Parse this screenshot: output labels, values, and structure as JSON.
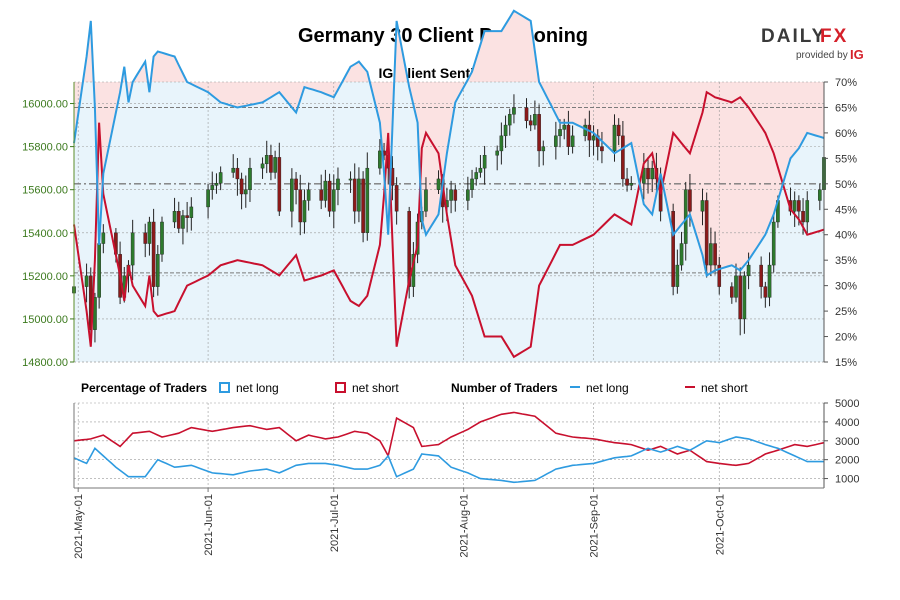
{
  "chart_data": {
    "type": "candlestick+line",
    "title": "Germany 30 Client Positioning",
    "subtitle": "IG Client Sentiment",
    "brand": {
      "name_left": "DAILY",
      "name_right": "FX",
      "provided_by": "provided by",
      "ig_mark": "IG"
    },
    "colors": {
      "net_long": "#2e9be0",
      "net_short": "#c8102e",
      "candle_up": "#2d7a2d",
      "candle_down": "#8b1a1a",
      "long_fill": "#e8f4fb",
      "short_fill": "#fbe2e2",
      "price_axis": "#3c7a1e"
    },
    "price_axis": {
      "min": 14800,
      "max": 16100,
      "ticks": [
        14800,
        15000,
        15200,
        15400,
        15600,
        15800,
        16000
      ],
      "tick_labels": [
        "14800.00",
        "15000.00",
        "15200.00",
        "15400.00",
        "15600.00",
        "15800.00",
        "16000.00"
      ]
    },
    "pct_axis": {
      "min": 15,
      "max": 70,
      "ticks": [
        15,
        20,
        25,
        30,
        35,
        40,
        45,
        50,
        55,
        60,
        65,
        70
      ],
      "tick_labels": [
        "15%",
        "20%",
        "25%",
        "30%",
        "35%",
        "40%",
        "45%",
        "50%",
        "55%",
        "60%",
        "65%",
        "70%"
      ]
    },
    "reference_lines_pct": [
      50,
      65,
      32.5
    ],
    "count_axis": {
      "min": 500,
      "max": 5000,
      "ticks": [
        1000,
        2000,
        3000,
        4000,
        5000
      ],
      "tick_labels": [
        "1000",
        "2000",
        "3000",
        "4000",
        "5000"
      ]
    },
    "date_range": {
      "start": "2021-04-30",
      "end": "2021-10-26"
    },
    "x_ticks": [
      {
        "date": "2021-05-01",
        "label": "2021-May-01"
      },
      {
        "date": "2021-06-01",
        "label": "2021-Jun-01"
      },
      {
        "date": "2021-07-01",
        "label": "2021-Jul-01"
      },
      {
        "date": "2021-08-01",
        "label": "2021-Aug-01"
      },
      {
        "date": "2021-09-01",
        "label": "2021-Sep-01"
      },
      {
        "date": "2021-10-01",
        "label": "2021-Oct-01"
      }
    ],
    "legend": {
      "pct_title": "Percentage of Traders",
      "pct_long": "net long",
      "pct_short": "net short",
      "count_title": "Number of Traders",
      "count_long": "net long",
      "count_short": "net short"
    },
    "net_long_pct_keyframes": [
      [
        "2021-04-30",
        58
      ],
      [
        "2021-05-03",
        75
      ],
      [
        "2021-05-04",
        82
      ],
      [
        "2021-05-05",
        65
      ],
      [
        "2021-05-06",
        38
      ],
      [
        "2021-05-07",
        52
      ],
      [
        "2021-05-10",
        64
      ],
      [
        "2021-05-11",
        68
      ],
      [
        "2021-05-12",
        73
      ],
      [
        "2021-05-13",
        66
      ],
      [
        "2021-05-14",
        70
      ],
      [
        "2021-05-17",
        74
      ],
      [
        "2021-05-18",
        68
      ],
      [
        "2021-05-19",
        75
      ],
      [
        "2021-05-20",
        76
      ],
      [
        "2021-05-24",
        75
      ],
      [
        "2021-05-27",
        70
      ],
      [
        "2021-06-01",
        68
      ],
      [
        "2021-06-04",
        66
      ],
      [
        "2021-06-08",
        65
      ],
      [
        "2021-06-14",
        66
      ],
      [
        "2021-06-18",
        68
      ],
      [
        "2021-06-22",
        64
      ],
      [
        "2021-06-24",
        69
      ],
      [
        "2021-06-28",
        68
      ],
      [
        "2021-07-01",
        67
      ],
      [
        "2021-07-05",
        73
      ],
      [
        "2021-07-07",
        74
      ],
      [
        "2021-07-09",
        72
      ],
      [
        "2021-07-12",
        62
      ],
      [
        "2021-07-13",
        52
      ],
      [
        "2021-07-14",
        40
      ],
      [
        "2021-07-16",
        82
      ],
      [
        "2021-07-19",
        69
      ],
      [
        "2021-07-21",
        62
      ],
      [
        "2021-07-22",
        43
      ],
      [
        "2021-07-23",
        40
      ],
      [
        "2021-07-26",
        44
      ],
      [
        "2021-07-28",
        56
      ],
      [
        "2021-07-30",
        66
      ],
      [
        "2021-08-03",
        72
      ],
      [
        "2021-08-06",
        80
      ],
      [
        "2021-08-10",
        80
      ],
      [
        "2021-08-13",
        84
      ],
      [
        "2021-08-17",
        82
      ],
      [
        "2021-08-19",
        70
      ],
      [
        "2021-08-24",
        62
      ],
      [
        "2021-08-27",
        62
      ],
      [
        "2021-09-01",
        60
      ],
      [
        "2021-09-06",
        56
      ],
      [
        "2021-09-10",
        58
      ],
      [
        "2021-09-13",
        46
      ],
      [
        "2021-09-15",
        44
      ],
      [
        "2021-09-17",
        52
      ],
      [
        "2021-09-20",
        40
      ],
      [
        "2021-09-22",
        42
      ],
      [
        "2021-09-24",
        44
      ],
      [
        "2021-09-27",
        36
      ],
      [
        "2021-09-28",
        32
      ],
      [
        "2021-09-30",
        33
      ],
      [
        "2021-10-04",
        34
      ],
      [
        "2021-10-06",
        33
      ],
      [
        "2021-10-08",
        35
      ],
      [
        "2021-10-12",
        40
      ],
      [
        "2021-10-14",
        44
      ],
      [
        "2021-10-18",
        55
      ],
      [
        "2021-10-20",
        57
      ],
      [
        "2021-10-22",
        60
      ],
      [
        "2021-10-26",
        59
      ]
    ],
    "net_long_count_keyframes": [
      [
        "2021-04-30",
        2100
      ],
      [
        "2021-05-03",
        1800
      ],
      [
        "2021-05-05",
        2600
      ],
      [
        "2021-05-07",
        2200
      ],
      [
        "2021-05-10",
        1600
      ],
      [
        "2021-05-13",
        1100
      ],
      [
        "2021-05-17",
        1100
      ],
      [
        "2021-05-20",
        2000
      ],
      [
        "2021-05-24",
        1600
      ],
      [
        "2021-05-28",
        1700
      ],
      [
        "2021-06-02",
        1300
      ],
      [
        "2021-06-07",
        1200
      ],
      [
        "2021-06-11",
        1400
      ],
      [
        "2021-06-15",
        1500
      ],
      [
        "2021-06-18",
        1300
      ],
      [
        "2021-06-22",
        1700
      ],
      [
        "2021-06-25",
        1800
      ],
      [
        "2021-06-29",
        1800
      ],
      [
        "2021-07-02",
        1700
      ],
      [
        "2021-07-06",
        1500
      ],
      [
        "2021-07-09",
        1500
      ],
      [
        "2021-07-12",
        1700
      ],
      [
        "2021-07-14",
        2200
      ],
      [
        "2021-07-16",
        1100
      ],
      [
        "2021-07-20",
        1500
      ],
      [
        "2021-07-22",
        2300
      ],
      [
        "2021-07-26",
        2200
      ],
      [
        "2021-07-29",
        1600
      ],
      [
        "2021-08-02",
        1300
      ],
      [
        "2021-08-05",
        1000
      ],
      [
        "2021-08-10",
        900
      ],
      [
        "2021-08-13",
        800
      ],
      [
        "2021-08-18",
        900
      ],
      [
        "2021-08-23",
        1500
      ],
      [
        "2021-08-27",
        1700
      ],
      [
        "2021-09-01",
        1800
      ],
      [
        "2021-09-06",
        2100
      ],
      [
        "2021-09-10",
        2200
      ],
      [
        "2021-09-14",
        2600
      ],
      [
        "2021-09-17",
        2400
      ],
      [
        "2021-09-21",
        2700
      ],
      [
        "2021-09-24",
        2500
      ],
      [
        "2021-09-28",
        3000
      ],
      [
        "2021-10-01",
        2900
      ],
      [
        "2021-10-05",
        3200
      ],
      [
        "2021-10-08",
        3100
      ],
      [
        "2021-10-12",
        2800
      ],
      [
        "2021-10-15",
        2600
      ],
      [
        "2021-10-19",
        2200
      ],
      [
        "2021-10-22",
        1900
      ],
      [
        "2021-10-26",
        1900
      ]
    ],
    "net_short_count_keyframes": [
      [
        "2021-04-30",
        3000
      ],
      [
        "2021-05-04",
        3100
      ],
      [
        "2021-05-07",
        3300
      ],
      [
        "2021-05-11",
        2700
      ],
      [
        "2021-05-14",
        3400
      ],
      [
        "2021-05-18",
        3500
      ],
      [
        "2021-05-21",
        3200
      ],
      [
        "2021-05-25",
        3400
      ],
      [
        "2021-05-28",
        3700
      ],
      [
        "2021-06-02",
        3500
      ],
      [
        "2021-06-07",
        3700
      ],
      [
        "2021-06-11",
        3800
      ],
      [
        "2021-06-15",
        3600
      ],
      [
        "2021-06-18",
        3700
      ],
      [
        "2021-06-22",
        3000
      ],
      [
        "2021-06-25",
        3300
      ],
      [
        "2021-06-29",
        3100
      ],
      [
        "2021-07-02",
        3200
      ],
      [
        "2021-07-06",
        3500
      ],
      [
        "2021-07-09",
        3400
      ],
      [
        "2021-07-12",
        3000
      ],
      [
        "2021-07-14",
        2200
      ],
      [
        "2021-07-16",
        4200
      ],
      [
        "2021-07-20",
        3700
      ],
      [
        "2021-07-22",
        2700
      ],
      [
        "2021-07-26",
        2800
      ],
      [
        "2021-07-29",
        3200
      ],
      [
        "2021-08-02",
        3600
      ],
      [
        "2021-08-05",
        4000
      ],
      [
        "2021-08-10",
        4400
      ],
      [
        "2021-08-13",
        4500
      ],
      [
        "2021-08-18",
        4300
      ],
      [
        "2021-08-23",
        3400
      ],
      [
        "2021-08-27",
        3200
      ],
      [
        "2021-09-01",
        3100
      ],
      [
        "2021-09-06",
        2900
      ],
      [
        "2021-09-10",
        2800
      ],
      [
        "2021-09-14",
        2500
      ],
      [
        "2021-09-17",
        2700
      ],
      [
        "2021-09-21",
        2300
      ],
      [
        "2021-09-24",
        2500
      ],
      [
        "2021-09-28",
        1900
      ],
      [
        "2021-10-01",
        1800
      ],
      [
        "2021-10-05",
        1700
      ],
      [
        "2021-10-08",
        1800
      ],
      [
        "2021-10-12",
        2300
      ],
      [
        "2021-10-15",
        2500
      ],
      [
        "2021-10-19",
        2800
      ],
      [
        "2021-10-22",
        2700
      ],
      [
        "2021-10-26",
        2900
      ]
    ],
    "price_keyframes": [
      [
        "2021-04-30",
        15150
      ],
      [
        "2021-05-03",
        15200
      ],
      [
        "2021-05-04",
        14950
      ],
      [
        "2021-05-05",
        15100
      ],
      [
        "2021-05-06",
        15350
      ],
      [
        "2021-05-07",
        15400
      ],
      [
        "2021-05-10",
        15300
      ],
      [
        "2021-05-11",
        15100
      ],
      [
        "2021-05-12",
        15200
      ],
      [
        "2021-05-13",
        15250
      ],
      [
        "2021-05-14",
        15400
      ],
      [
        "2021-05-17",
        15350
      ],
      [
        "2021-05-18",
        15450
      ],
      [
        "2021-05-19",
        15150
      ],
      [
        "2021-05-20",
        15300
      ],
      [
        "2021-05-21",
        15450
      ],
      [
        "2021-05-24",
        15500
      ],
      [
        "2021-05-25",
        15420
      ],
      [
        "2021-05-26",
        15480
      ],
      [
        "2021-05-27",
        15470
      ],
      [
        "2021-05-28",
        15520
      ],
      [
        "2021-06-01",
        15600
      ],
      [
        "2021-06-02",
        15620
      ],
      [
        "2021-06-03",
        15630
      ],
      [
        "2021-06-04",
        15680
      ],
      [
        "2021-06-07",
        15700
      ],
      [
        "2021-06-08",
        15650
      ],
      [
        "2021-06-09",
        15580
      ],
      [
        "2021-06-10",
        15600
      ],
      [
        "2021-06-11",
        15700
      ],
      [
        "2021-06-14",
        15720
      ],
      [
        "2021-06-15",
        15760
      ],
      [
        "2021-06-16",
        15680
      ],
      [
        "2021-06-17",
        15750
      ],
      [
        "2021-06-18",
        15500
      ],
      [
        "2021-06-21",
        15650
      ],
      [
        "2021-06-22",
        15600
      ],
      [
        "2021-06-23",
        15450
      ],
      [
        "2021-06-24",
        15550
      ],
      [
        "2021-06-25",
        15600
      ],
      [
        "2021-06-28",
        15550
      ],
      [
        "2021-06-29",
        15640
      ],
      [
        "2021-06-30",
        15500
      ],
      [
        "2021-07-01",
        15600
      ],
      [
        "2021-07-02",
        15650
      ],
      [
        "2021-07-05",
        15650
      ],
      [
        "2021-07-06",
        15500
      ],
      [
        "2021-07-07",
        15650
      ],
      [
        "2021-07-08",
        15400
      ],
      [
        "2021-07-09",
        15700
      ],
      [
        "2021-07-12",
        15780
      ],
      [
        "2021-07-13",
        15760
      ],
      [
        "2021-07-14",
        15700
      ],
      [
        "2021-07-15",
        15620
      ],
      [
        "2021-07-16",
        15500
      ],
      [
        "2021-07-19",
        15150
      ],
      [
        "2021-07-20",
        15300
      ],
      [
        "2021-07-21",
        15450
      ],
      [
        "2021-07-22",
        15500
      ],
      [
        "2021-07-23",
        15600
      ],
      [
        "2021-07-26",
        15650
      ],
      [
        "2021-07-27",
        15520
      ],
      [
        "2021-07-28",
        15550
      ],
      [
        "2021-07-29",
        15600
      ],
      [
        "2021-07-30",
        15550
      ],
      [
        "2021-08-02",
        15600
      ],
      [
        "2021-08-03",
        15650
      ],
      [
        "2021-08-04",
        15680
      ],
      [
        "2021-08-05",
        15700
      ],
      [
        "2021-08-06",
        15760
      ],
      [
        "2021-08-09",
        15780
      ],
      [
        "2021-08-10",
        15850
      ],
      [
        "2021-08-11",
        15900
      ],
      [
        "2021-08-12",
        15950
      ],
      [
        "2021-08-13",
        15980
      ],
      [
        "2021-08-16",
        15920
      ],
      [
        "2021-08-17",
        15900
      ],
      [
        "2021-08-18",
        15950
      ],
      [
        "2021-08-19",
        15780
      ],
      [
        "2021-08-20",
        15800
      ],
      [
        "2021-08-23",
        15850
      ],
      [
        "2021-08-24",
        15880
      ],
      [
        "2021-08-25",
        15900
      ],
      [
        "2021-08-26",
        15800
      ],
      [
        "2021-08-27",
        15850
      ],
      [
        "2021-08-30",
        15900
      ],
      [
        "2021-08-31",
        15830
      ],
      [
        "2021-09-01",
        15850
      ],
      [
        "2021-09-02",
        15800
      ],
      [
        "2021-09-03",
        15780
      ],
      [
        "2021-09-06",
        15900
      ],
      [
        "2021-09-07",
        15850
      ],
      [
        "2021-09-08",
        15650
      ],
      [
        "2021-09-09",
        15620
      ],
      [
        "2021-09-10",
        15630
      ],
      [
        "2021-09-13",
        15700
      ],
      [
        "2021-09-14",
        15650
      ],
      [
        "2021-09-15",
        15700
      ],
      [
        "2021-09-16",
        15650
      ],
      [
        "2021-09-17",
        15500
      ],
      [
        "2021-09-20",
        15150
      ],
      [
        "2021-09-21",
        15250
      ],
      [
        "2021-09-22",
        15350
      ],
      [
        "2021-09-23",
        15600
      ],
      [
        "2021-09-24",
        15500
      ],
      [
        "2021-09-27",
        15550
      ],
      [
        "2021-09-28",
        15250
      ],
      [
        "2021-09-29",
        15350
      ],
      [
        "2021-09-30",
        15250
      ],
      [
        "2021-10-01",
        15150
      ],
      [
        "2021-10-04",
        15100
      ],
      [
        "2021-10-05",
        15200
      ],
      [
        "2021-10-06",
        15000
      ],
      [
        "2021-10-07",
        15200
      ],
      [
        "2021-10-08",
        15250
      ],
      [
        "2021-10-11",
        15150
      ],
      [
        "2021-10-12",
        15100
      ],
      [
        "2021-10-13",
        15250
      ],
      [
        "2021-10-14",
        15450
      ],
      [
        "2021-10-15",
        15550
      ],
      [
        "2021-10-18",
        15500
      ],
      [
        "2021-10-19",
        15550
      ],
      [
        "2021-10-20",
        15500
      ],
      [
        "2021-10-21",
        15450
      ],
      [
        "2021-10-22",
        15550
      ],
      [
        "2021-10-25",
        15600
      ],
      [
        "2021-10-26",
        15750
      ]
    ]
  }
}
